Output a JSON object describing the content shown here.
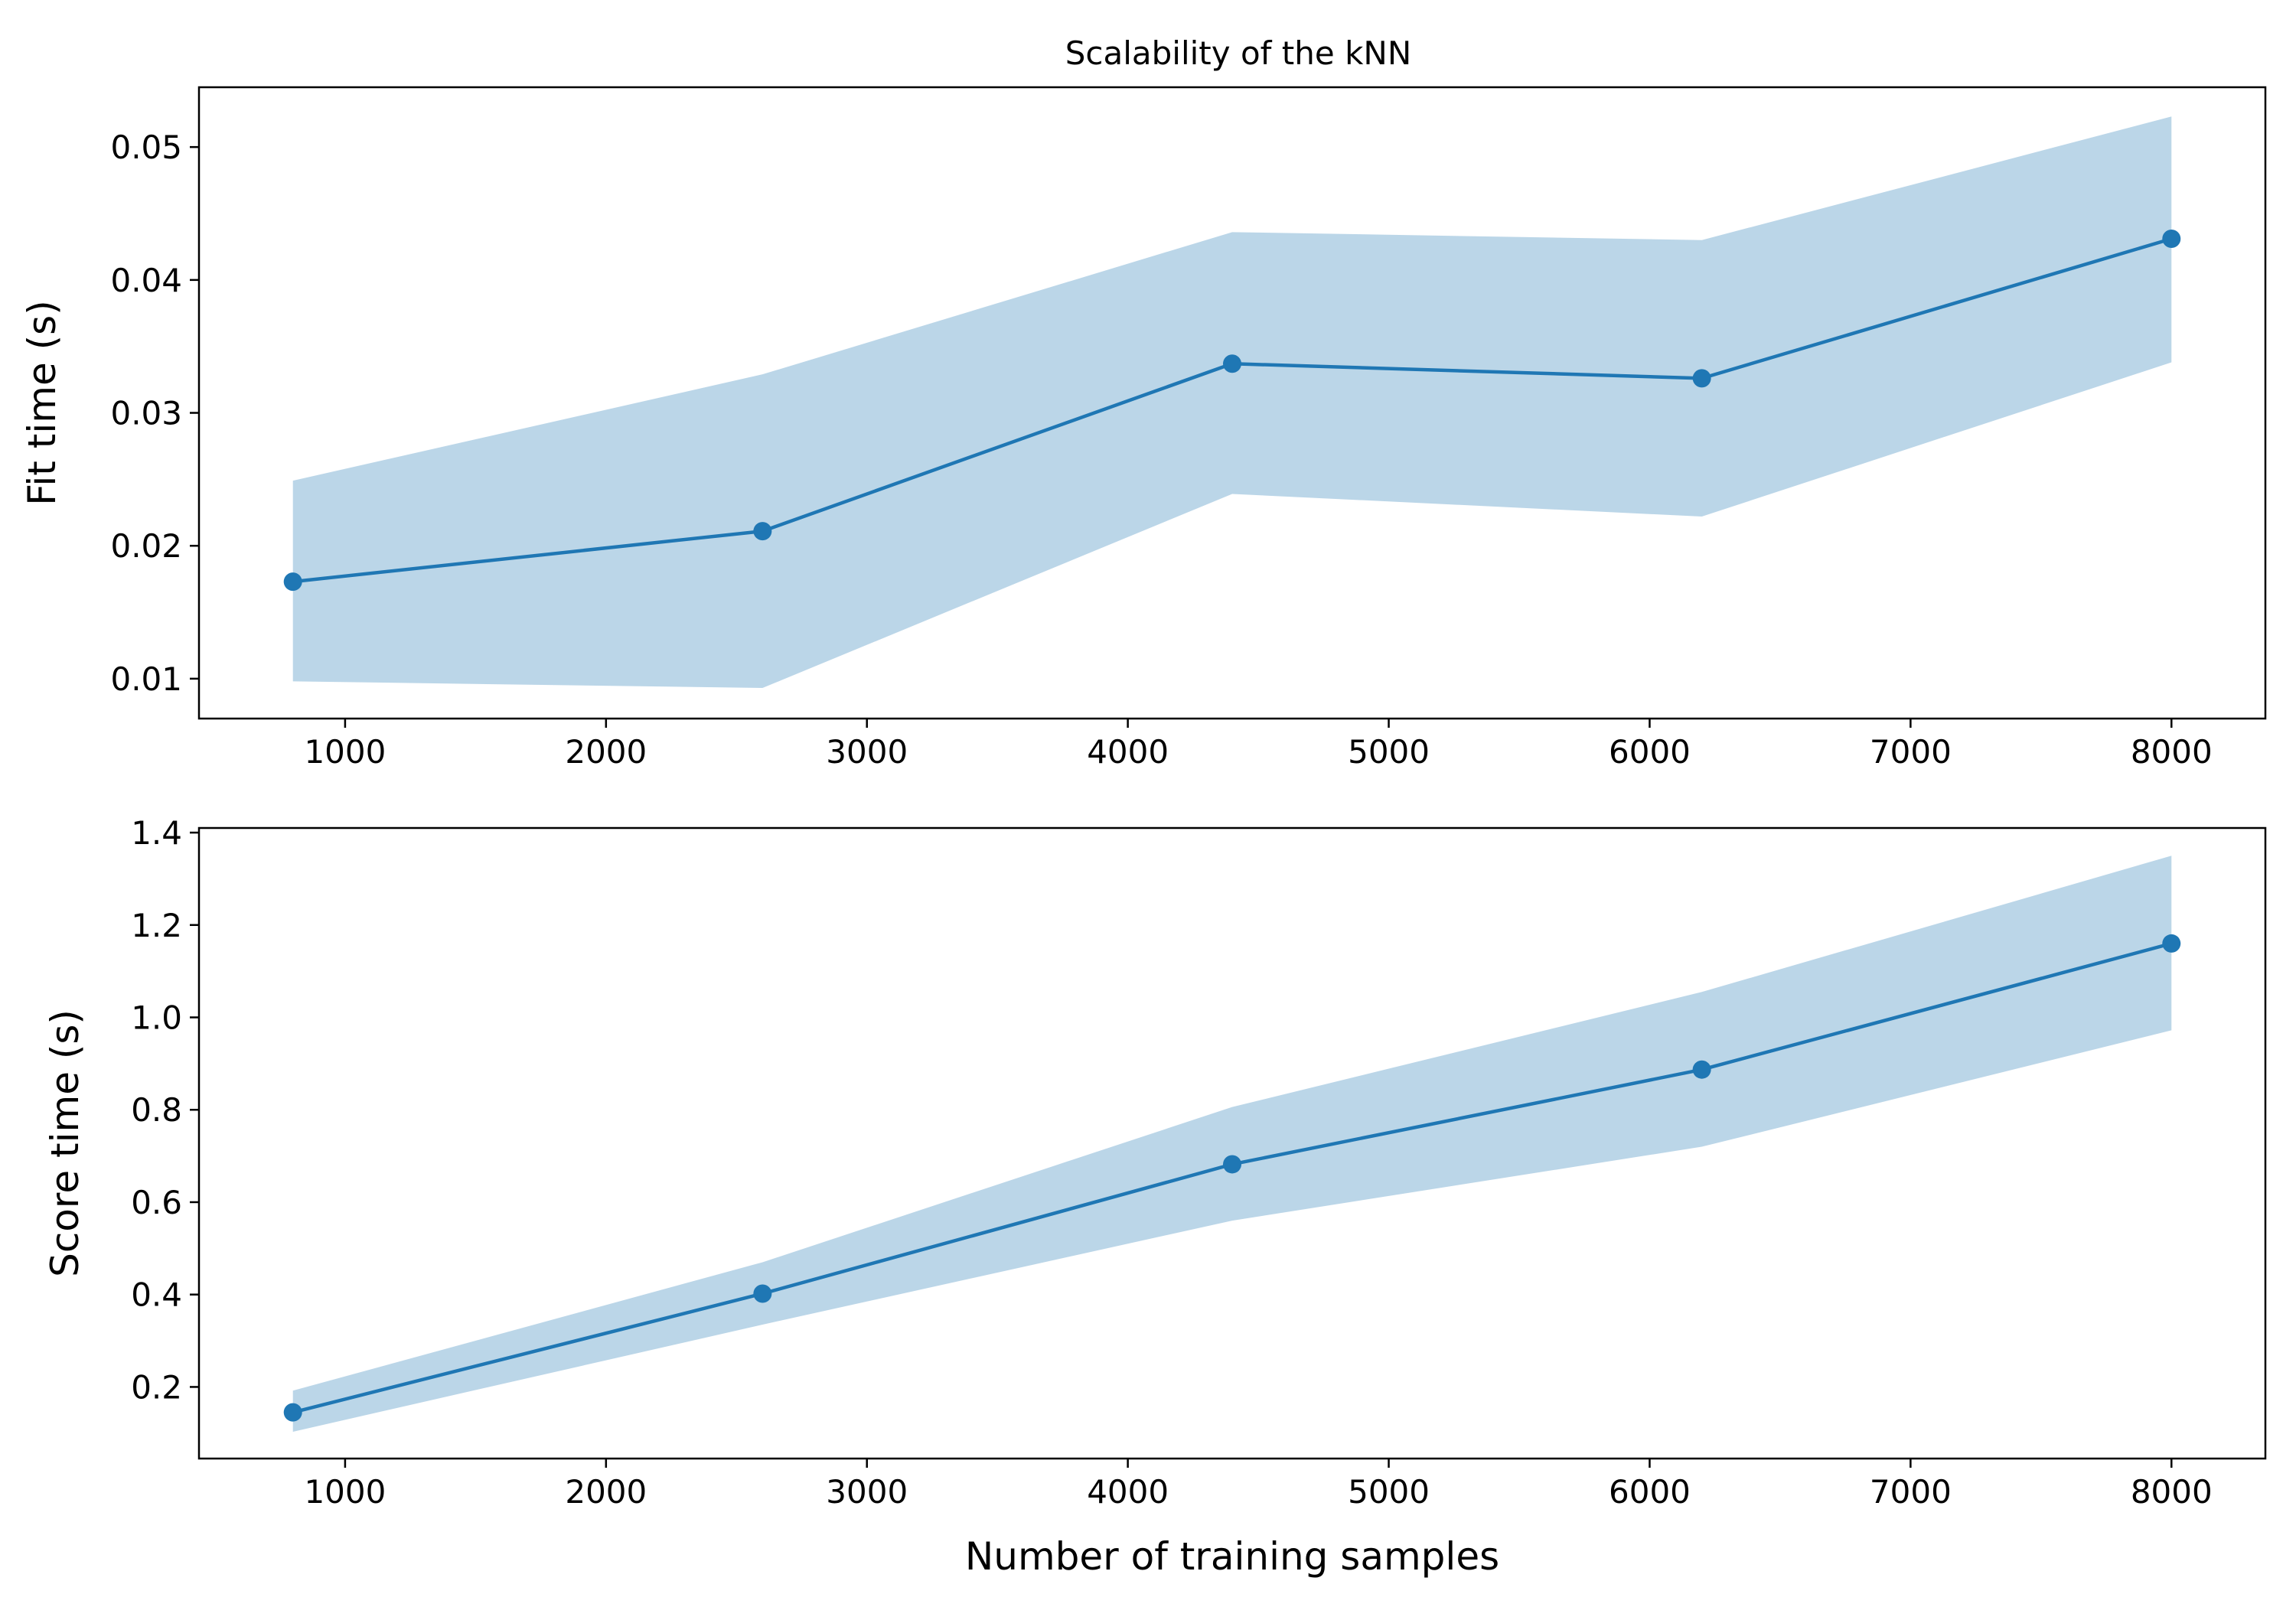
{
  "figure": {
    "title": "Scalability of the kNN"
  },
  "colors": {
    "line": "#1f77b4",
    "band": "#1f77b4",
    "band_opacity": 0.3,
    "axes": "#000000"
  },
  "chart_data": [
    {
      "type": "line",
      "title": "Scalability of the kNN",
      "xlabel": "",
      "ylabel": "Fit time (s)",
      "xlim": [
        440,
        8360
      ],
      "ylim": [
        0.007,
        0.0545
      ],
      "xticks": [
        1000,
        2000,
        3000,
        4000,
        5000,
        6000,
        7000,
        8000
      ],
      "xtick_labels": [
        "1000",
        "2000",
        "3000",
        "4000",
        "5000",
        "6000",
        "7000",
        "8000"
      ],
      "yticks": [
        0.01,
        0.02,
        0.03,
        0.04,
        0.05
      ],
      "ytick_labels": [
        "0.01",
        "0.02",
        "0.03",
        "0.04",
        "0.05"
      ],
      "grid": false,
      "legend": "none",
      "series": [
        {
          "x": [
            800,
            2600,
            4400,
            6200,
            8000
          ],
          "y": [
            0.0173,
            0.0211,
            0.0337,
            0.0326,
            0.0431
          ],
          "lower": [
            0.0098,
            0.0093,
            0.0239,
            0.0222,
            0.0338
          ],
          "upper": [
            0.0249,
            0.0329,
            0.0436,
            0.043,
            0.0523
          ],
          "marker": "circle"
        }
      ]
    },
    {
      "type": "line",
      "title": "",
      "xlabel": "Number of training samples",
      "ylabel": "Score time (s)",
      "xlim": [
        440,
        8360
      ],
      "ylim": [
        0.045,
        1.41
      ],
      "xticks": [
        1000,
        2000,
        3000,
        4000,
        5000,
        6000,
        7000,
        8000
      ],
      "xtick_labels": [
        "1000",
        "2000",
        "3000",
        "4000",
        "5000",
        "6000",
        "7000",
        "8000"
      ],
      "yticks": [
        0.2,
        0.4,
        0.6,
        0.8,
        1.0,
        1.2,
        1.4
      ],
      "ytick_labels": [
        "0.2",
        "0.4",
        "0.6",
        "0.8",
        "1.0",
        "1.2",
        "1.4"
      ],
      "grid": false,
      "legend": "none",
      "series": [
        {
          "x": [
            800,
            2600,
            4400,
            6200,
            8000
          ],
          "y": [
            0.145,
            0.402,
            0.682,
            0.887,
            1.16
          ],
          "lower": [
            0.103,
            0.335,
            0.56,
            0.72,
            0.972
          ],
          "upper": [
            0.192,
            0.47,
            0.806,
            1.055,
            1.35
          ],
          "marker": "circle"
        }
      ]
    }
  ]
}
